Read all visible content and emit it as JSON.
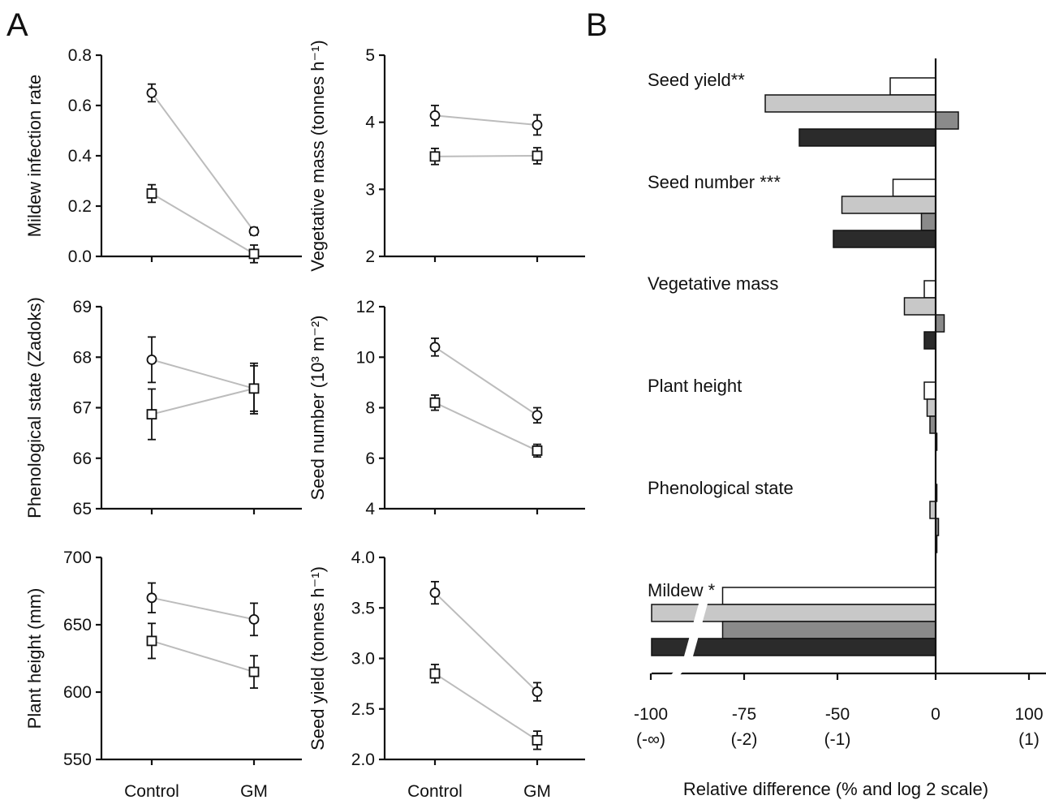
{
  "figure": {
    "panel_a_letter": "A",
    "panel_b_letter": "B"
  },
  "colors": {
    "connector": "#bcbcbc",
    "axis": "#111111",
    "bar_white": "#ffffff",
    "bar_light": "#c8c8c8",
    "bar_mid": "#8a8a8a",
    "bar_dark": "#2b2b2b"
  },
  "chart_data": [
    {
      "type": "line",
      "panel": "A",
      "categories": [
        "Control",
        "GM"
      ],
      "ylabel": "Mildew infection rate",
      "ylim": [
        0.0,
        0.8
      ],
      "yticks": [
        "0.0",
        "0.2",
        "0.4",
        "0.6",
        "0.8"
      ],
      "show_xlabels": false,
      "series": [
        {
          "marker": "circle",
          "values": [
            0.65,
            0.1
          ],
          "errors": [
            0.035,
            0.015
          ]
        },
        {
          "marker": "square",
          "values": [
            0.25,
            0.01
          ],
          "errors": [
            0.035,
            0.035
          ]
        }
      ]
    },
    {
      "type": "line",
      "panel": "A",
      "categories": [
        "Control",
        "GM"
      ],
      "ylabel": "Vegetative mass (tonnes h⁻¹)",
      "ylim": [
        2,
        5
      ],
      "yticks": [
        "2",
        "3",
        "4",
        "5"
      ],
      "show_xlabels": false,
      "series": [
        {
          "marker": "circle",
          "values": [
            4.1,
            3.96
          ],
          "errors": [
            0.15,
            0.15
          ]
        },
        {
          "marker": "square",
          "values": [
            3.49,
            3.5
          ],
          "errors": [
            0.12,
            0.12
          ]
        }
      ]
    },
    {
      "type": "line",
      "panel": "A",
      "categories": [
        "Control",
        "GM"
      ],
      "ylabel": "Phenological state (Zadoks)",
      "ylim": [
        65,
        69
      ],
      "yticks": [
        "65",
        "66",
        "67",
        "68",
        "69"
      ],
      "show_xlabels": false,
      "series": [
        {
          "marker": "circle",
          "values": [
            67.95,
            67.38
          ],
          "errors": [
            0.45,
            0.45
          ]
        },
        {
          "marker": "square",
          "values": [
            66.87,
            67.38
          ],
          "errors": [
            0.5,
            0.5
          ]
        }
      ]
    },
    {
      "type": "line",
      "panel": "A",
      "categories": [
        "Control",
        "GM"
      ],
      "ylabel": "Seed number (10³ m⁻²)",
      "ylim": [
        4,
        12
      ],
      "yticks": [
        "4",
        "6",
        "8",
        "10",
        "12"
      ],
      "show_xlabels": false,
      "series": [
        {
          "marker": "circle",
          "values": [
            10.4,
            7.7
          ],
          "errors": [
            0.35,
            0.3
          ]
        },
        {
          "marker": "square",
          "values": [
            8.2,
            6.3
          ],
          "errors": [
            0.3,
            0.25
          ]
        }
      ]
    },
    {
      "type": "line",
      "panel": "A",
      "categories": [
        "Control",
        "GM"
      ],
      "ylabel": "Plant height (mm)",
      "ylim": [
        550,
        700
      ],
      "yticks": [
        "550",
        "600",
        "650",
        "700"
      ],
      "show_xlabels": true,
      "series": [
        {
          "marker": "circle",
          "values": [
            670,
            654
          ],
          "errors": [
            11,
            12
          ]
        },
        {
          "marker": "square",
          "values": [
            638,
            615
          ],
          "errors": [
            13,
            12
          ]
        }
      ]
    },
    {
      "type": "line",
      "panel": "A",
      "categories": [
        "Control",
        "GM"
      ],
      "ylabel": "Seed yield (tonnes h⁻¹)",
      "ylim": [
        2.0,
        4.0
      ],
      "yticks": [
        "2.0",
        "2.5",
        "3.0",
        "3.5",
        "4.0"
      ],
      "show_xlabels": true,
      "series": [
        {
          "marker": "circle",
          "values": [
            3.65,
            2.67
          ],
          "errors": [
            0.11,
            0.09
          ]
        },
        {
          "marker": "square",
          "values": [
            2.85,
            2.19
          ],
          "errors": [
            0.09,
            0.09
          ]
        }
      ]
    },
    {
      "type": "bar",
      "panel": "B",
      "orientation": "horizontal",
      "xlabel": "Relative difference (% and log 2 scale)",
      "xlim": [
        -100,
        100
      ],
      "xticks": [
        {
          "value": -100,
          "label": "-100",
          "sublabel": "(-∞)"
        },
        {
          "value": -75,
          "label": "-75",
          "sublabel": "(-2)"
        },
        {
          "value": -50,
          "label": "-50",
          "sublabel": "(-1)"
        },
        {
          "value": 0,
          "label": "0",
          "sublabel": ""
        },
        {
          "value": 100,
          "label": "100",
          "sublabel": "(1)"
        }
      ],
      "series_colors": [
        "#ffffff",
        "#c8c8c8",
        "#8a8a8a",
        "#2b2b2b"
      ],
      "groups": [
        {
          "label": "Seed yield**",
          "values": [
            -16,
            -60,
            8,
            -48
          ]
        },
        {
          "label": "Seed number ***",
          "values": [
            -15,
            -33,
            -5,
            -36
          ]
        },
        {
          "label": "Vegetative mass",
          "values": [
            -4,
            -11,
            3,
            -4
          ]
        },
        {
          "label": "Plant height",
          "values": [
            -4,
            -3,
            -2,
            0
          ]
        },
        {
          "label": "Phenological state",
          "values": [
            0,
            -2,
            1,
            0
          ]
        },
        {
          "label": "Mildew *",
          "values": [
            -75,
            -100,
            -75,
            -100
          ]
        }
      ]
    }
  ]
}
